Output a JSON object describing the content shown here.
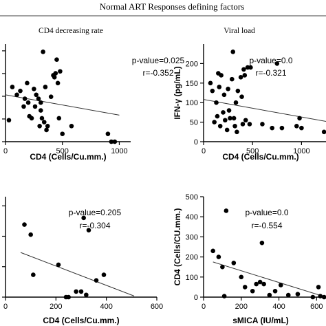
{
  "figure": {
    "title": "Normal ART Responses defining factors",
    "colors": {
      "ink": "#000000",
      "background": "#ffffff"
    }
  },
  "chart_data": [
    {
      "type": "scatter",
      "title": "CD4 decreasing rate",
      "xlabel": "CD4 (Cells/Cu.mm.)",
      "ylabel": "",
      "xlim": [
        0,
        1100
      ],
      "ylim": [
        0,
        250
      ],
      "xticks": [
        "0",
        "500",
        "1000"
      ],
      "yticks": [],
      "grid": false,
      "legend": "none",
      "annotations": [
        "p-value=0.025",
        "r=-0.352"
      ],
      "trendline": {
        "x": [
          0,
          1000
        ],
        "y": [
          120,
          68
        ]
      },
      "x": [
        30,
        60,
        100,
        130,
        160,
        170,
        190,
        200,
        210,
        230,
        250,
        260,
        270,
        290,
        300,
        310,
        310,
        320,
        330,
        340,
        350,
        360,
        370,
        400,
        420,
        430,
        440,
        450,
        460,
        470,
        480,
        500,
        580,
        900,
        930,
        960
      ],
      "y": [
        55,
        140,
        120,
        130,
        90,
        110,
        150,
        100,
        65,
        60,
        135,
        90,
        120,
        110,
        40,
        100,
        80,
        60,
        230,
        50,
        140,
        30,
        40,
        115,
        170,
        165,
        175,
        210,
        150,
        60,
        180,
        20,
        40,
        20,
        0,
        0
      ]
    },
    {
      "type": "scatter",
      "title": "Viral load",
      "xlabel": "CD4 (Cells/Cu.mm.)",
      "ylabel": "IFN-γ (pg/mL)",
      "xlim": [
        0,
        1250
      ],
      "ylim": [
        0,
        250
      ],
      "xticks": [
        "0",
        "500",
        "1000"
      ],
      "yticks": [
        "0",
        "50",
        "100",
        "150",
        "200"
      ],
      "grid": false,
      "legend": "none",
      "annotations": [
        "p-value=0.0",
        "r=-0.321"
      ],
      "trendline": {
        "x": [
          0,
          1250
        ],
        "y": [
          108,
          52
        ]
      },
      "x": [
        70,
        90,
        110,
        130,
        140,
        150,
        160,
        170,
        180,
        200,
        210,
        220,
        240,
        250,
        260,
        270,
        290,
        300,
        310,
        320,
        330,
        340,
        350,
        380,
        390,
        400,
        410,
        420,
        430,
        450,
        470,
        480,
        600,
        700,
        750,
        800,
        950,
        980,
        1000,
        1230
      ],
      "y": [
        150,
        130,
        50,
        100,
        65,
        175,
        140,
        40,
        170,
        75,
        120,
        55,
        30,
        135,
        80,
        60,
        160,
        230,
        60,
        40,
        100,
        25,
        130,
        165,
        115,
        45,
        185,
        170,
        55,
        190,
        45,
        190,
        45,
        35,
        200,
        35,
        40,
        60,
        35,
        25
      ]
    },
    {
      "type": "scatter",
      "title": "",
      "xlabel": "CD4 (Cells/Cu.mm.)",
      "ylabel": "",
      "xlim": [
        0,
        600
      ],
      "ylim": [
        0,
        90
      ],
      "xticks": [
        "0",
        "200",
        "400",
        "600"
      ],
      "yticks": [],
      "grid": false,
      "legend": "none",
      "annotations": [
        "p-value=0.205",
        "r=-0.304"
      ],
      "trendline": {
        "x": [
          60,
          510
        ],
        "y": [
          40,
          1
        ]
      },
      "x": [
        75,
        100,
        110,
        210,
        240,
        250,
        280,
        300,
        310,
        320,
        330,
        360,
        390
      ],
      "y": [
        65,
        56,
        20,
        29,
        0,
        0,
        5,
        5,
        71,
        2,
        60,
        15,
        20
      ]
    },
    {
      "type": "scatter",
      "title": "",
      "xlabel": "sMICA (IU/mL)",
      "ylabel": "CD4 (Cells/CU.mm.)",
      "xlim": [
        0,
        650
      ],
      "ylim": [
        0,
        500
      ],
      "xticks": [
        "0",
        "200",
        "400",
        "600"
      ],
      "yticks": [
        "0",
        "100",
        "200",
        "300",
        "400",
        "500"
      ],
      "grid": false,
      "legend": "none",
      "annotations": [
        "p-value=0.0",
        "r=-0.554"
      ],
      "trendline": {
        "x": [
          50,
          650
        ],
        "y": [
          175,
          0
        ]
      },
      "x": [
        50,
        80,
        100,
        110,
        120,
        160,
        200,
        220,
        260,
        280,
        300,
        310,
        320,
        350,
        380,
        410,
        450,
        500,
        580,
        610,
        620,
        640
      ],
      "y": [
        230,
        200,
        150,
        5,
        430,
        170,
        100,
        50,
        30,
        65,
        75,
        270,
        65,
        10,
        30,
        60,
        10,
        15,
        0,
        50,
        5,
        0
      ]
    }
  ]
}
